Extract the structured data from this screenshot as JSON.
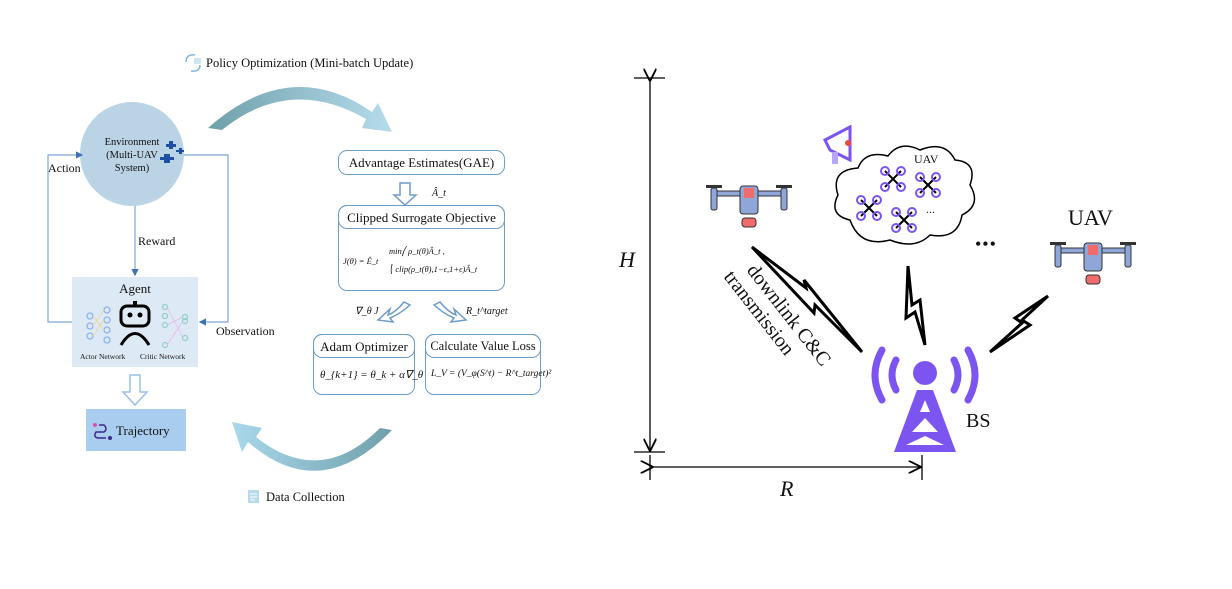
{
  "left_panel": {
    "policy_optimization_label": "Policy Optimization (Mini-batch Update)",
    "data_collection_label": "Data Collection",
    "environment": {
      "line1": "Environment",
      "line2": "(Multi-UAV",
      "line3": "System)"
    },
    "action_label": "Action",
    "reward_label": "Reward",
    "observation_label": "Observation",
    "agent": {
      "title": "Agent",
      "actor_label": "Actor Network",
      "critic_label": "Critic Network"
    },
    "trajectory_label": "Trajectory",
    "advantage_box": "Advantage Estimates(GAE)",
    "advantage_symbol": "Â_t",
    "clipped_box": {
      "title": "Clipped Surrogate Objective",
      "formula_lhs": "J(θ) = Ê_t",
      "formula_line1": "min⎛ ρ_t(θ)Â_t ,",
      "formula_line2": "⎝ clip(ρ_t(θ),1−ϵ,1+ϵ)Â_t"
    },
    "grad_label": "∇_θ J",
    "target_label": "R_t^target",
    "adam_box": {
      "title": "Adam Optimizer",
      "formula": "θ_{k+1} = θ_k + α∇_θ J"
    },
    "value_loss_box": {
      "title": "Calculate Value Loss",
      "formula": "L_V = (V_φ(S^t) − R^t_target)²"
    }
  },
  "right_panel": {
    "height_label": "H",
    "radius_label": "R",
    "cloud_uav_label": "UAV",
    "cloud_ellipsis": "...",
    "uav_label": "UAV",
    "more_dots": "•••",
    "link_label_line1": "downlink C&C",
    "link_label_line2": "transmission",
    "bs_label": "BS"
  },
  "colors": {
    "environment_fill": "#bad4e6",
    "agent_fill": "#dde9f5",
    "trajectory_fill": "#a9cdef",
    "box_border": "#6d9cc8",
    "bs_purple": "#7c55f0",
    "drone_blue": "#8fa6d8",
    "drone_red": "#f06b6b"
  }
}
